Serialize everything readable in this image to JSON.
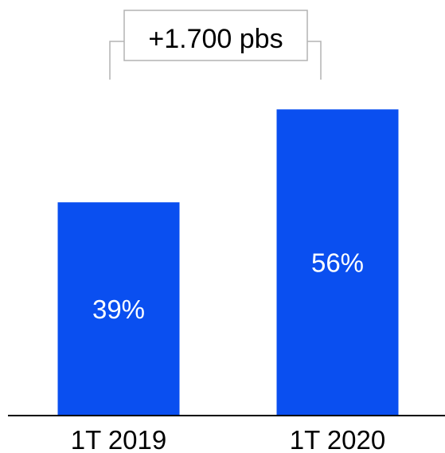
{
  "chart_data": {
    "type": "bar",
    "categories": [
      "1T 2019",
      "1T 2020"
    ],
    "values": [
      39,
      56
    ],
    "value_labels": [
      "39%",
      "56%"
    ],
    "ylim": [
      0,
      76
    ],
    "grid": false,
    "legend": "none",
    "annotation": {
      "text": "+1.700 pbs",
      "between": [
        "1T 2019",
        "1T 2020"
      ]
    },
    "colors": {
      "bar": "#0a4ff0",
      "bar_label": "#ffffff",
      "axis": "#000000",
      "bracket": "#b3b3b3",
      "annotation_text": "#000000"
    }
  }
}
